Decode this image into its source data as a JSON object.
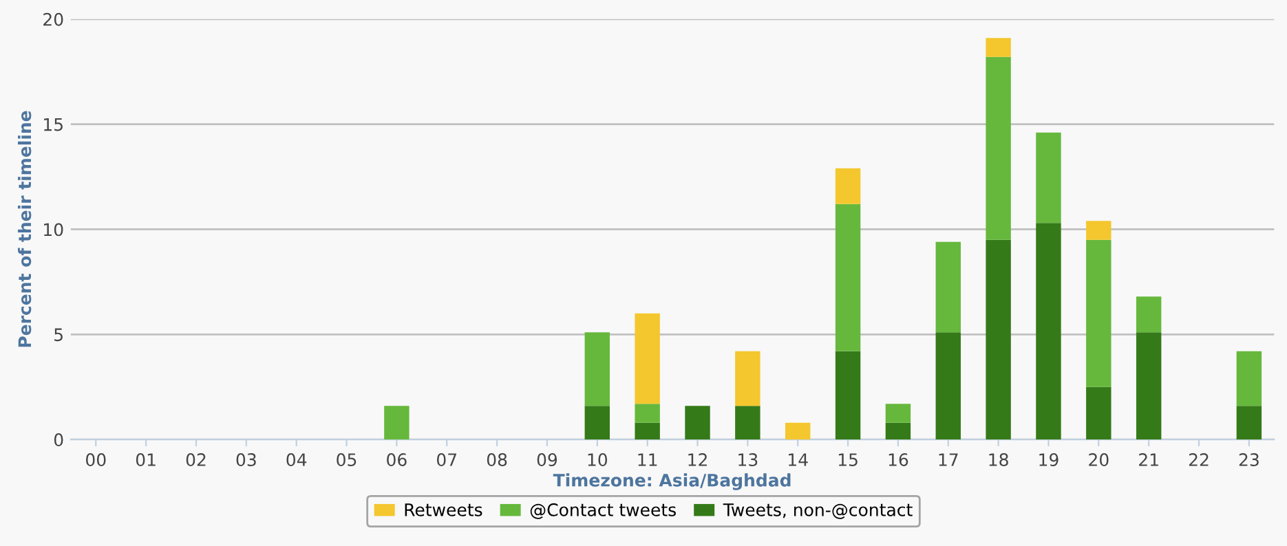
{
  "chart_data": {
    "type": "bar",
    "stacked": true,
    "xlabel": "Timezone: Asia/Baghdad",
    "ylabel": "Percent of their timeline",
    "categories": [
      "00",
      "01",
      "02",
      "03",
      "04",
      "05",
      "06",
      "07",
      "08",
      "09",
      "10",
      "11",
      "12",
      "13",
      "14",
      "15",
      "16",
      "17",
      "18",
      "19",
      "20",
      "21",
      "22",
      "23"
    ],
    "series": [
      {
        "name": "Tweets, non-@contact",
        "color": "#357a18",
        "values": [
          0,
          0,
          0,
          0,
          0,
          0,
          0,
          0,
          0,
          0,
          1.6,
          0.8,
          1.6,
          1.6,
          0,
          4.2,
          0.8,
          5.1,
          9.5,
          10.3,
          2.5,
          5.1,
          0,
          1.6
        ]
      },
      {
        "name": "@Contact tweets",
        "color": "#66b83c",
        "values": [
          0,
          0,
          0,
          0,
          0,
          0,
          1.6,
          0,
          0,
          0,
          3.5,
          0.9,
          0,
          0,
          0,
          7.0,
          0.9,
          4.3,
          8.7,
          4.3,
          7.0,
          1.7,
          0,
          2.6
        ]
      },
      {
        "name": "Retweets",
        "color": "#f4c72e",
        "values": [
          0,
          0,
          0,
          0,
          0,
          0,
          0,
          0,
          0,
          0,
          0,
          4.3,
          0,
          2.6,
          0.8,
          1.7,
          0,
          0,
          0.9,
          0,
          0.9,
          0,
          0,
          0
        ]
      }
    ],
    "ylim": [
      0,
      20
    ],
    "yticks": [
      0,
      5,
      10,
      15,
      20
    ],
    "grid": "y",
    "legend": "bottom"
  }
}
